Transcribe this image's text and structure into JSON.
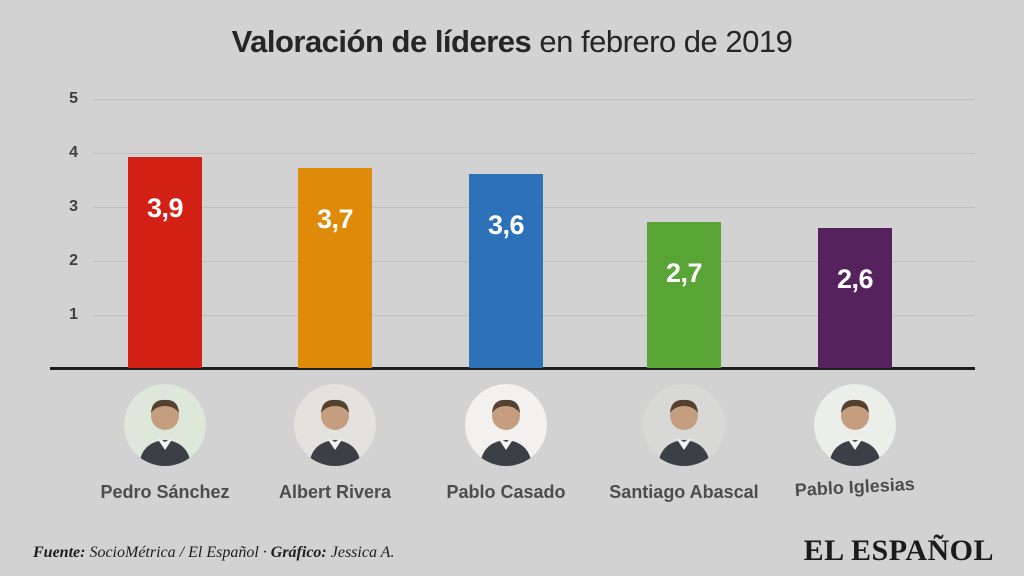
{
  "title": {
    "bold": "Valoración de líderes",
    "rest": " en febrero de 2019"
  },
  "chart_data": {
    "type": "bar",
    "title": "Valoración de líderes en febrero de 2019",
    "categories": [
      "Pedro Sánchez",
      "Albert Rivera",
      "Pablo Casado",
      "Santiago Abascal",
      "Pablo Iglesias"
    ],
    "values": [
      3.9,
      3.7,
      3.6,
      2.7,
      2.6
    ],
    "value_labels": [
      "3,9",
      "3,7",
      "3,6",
      "2,7",
      "2,6"
    ],
    "bar_colors": [
      "#d32014",
      "#e08a0a",
      "#2d72b8",
      "#58a434",
      "#55225e"
    ],
    "xlabel": "",
    "ylabel": "",
    "ylim": [
      0,
      5
    ],
    "yticks": [
      1,
      2,
      3,
      4,
      5
    ],
    "grid": true,
    "legend": false
  },
  "people": [
    {
      "name": "Pedro Sánchez",
      "avatar": "portrait-pedro-sanchez",
      "bg": "#dde8da"
    },
    {
      "name": "Albert Rivera",
      "avatar": "portrait-albert-rivera",
      "bg": "#e4e2df"
    },
    {
      "name": "Pablo Casado",
      "avatar": "portrait-pablo-casado",
      "bg": "#f2f1ef"
    },
    {
      "name": "Santiago Abascal",
      "avatar": "portrait-santiago-abascal",
      "bg": "#d8d8d6"
    },
    {
      "name": "Pablo Iglesias",
      "avatar": "portrait-pablo-iglesias",
      "bg": "#eceeea"
    }
  ],
  "footer": {
    "source_label": "Fuente:",
    "source_value": " SocioMétrica / El Español",
    "separator": " · ",
    "credit_label": "Gráfico:",
    "credit_value": " Jessica A."
  },
  "logo": "EL ESPAÑOL"
}
